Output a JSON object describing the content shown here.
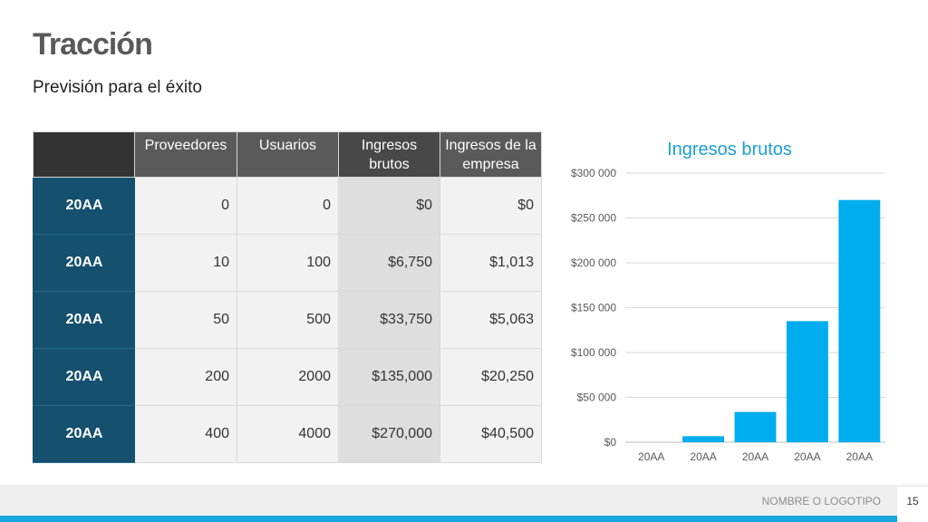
{
  "slide": {
    "title": "Tracción",
    "subtitle": "Previsión para el éxito"
  },
  "table": {
    "headers": [
      "",
      "Proveedores",
      "Usuarios",
      "Ingresos brutos",
      "Ingresos de la empresa"
    ],
    "rows": [
      [
        "20AA",
        "0",
        "0",
        "$0",
        "$0"
      ],
      [
        "20AA",
        "10",
        "100",
        "$6,750",
        "$1,013"
      ],
      [
        "20AA",
        "50",
        "500",
        "$33,750",
        "$5,063"
      ],
      [
        "20AA",
        "200",
        "2000",
        "$135,000",
        "$20,250"
      ],
      [
        "20AA",
        "400",
        "4000",
        "$270,000",
        "$40,500"
      ]
    ]
  },
  "chart_data": {
    "type": "bar",
    "title": "Ingresos brutos",
    "categories": [
      "20AA",
      "20AA",
      "20AA",
      "20AA",
      "20AA"
    ],
    "values": [
      0,
      6750,
      33750,
      135000,
      270000
    ],
    "ylim": [
      0,
      300000
    ],
    "yticks": [
      0,
      50000,
      100000,
      150000,
      200000,
      250000,
      300000
    ],
    "ytick_labels": [
      "$0",
      "$50 000",
      "$100 000",
      "$150 000",
      "$200 000",
      "$250 000",
      "$300 000"
    ],
    "xlabel": "",
    "ylabel": "",
    "bar_color": "#00adef",
    "grid": true
  },
  "footer": {
    "logo_text": "NOMBRE O LOGOTIPO",
    "page_number": "15"
  }
}
